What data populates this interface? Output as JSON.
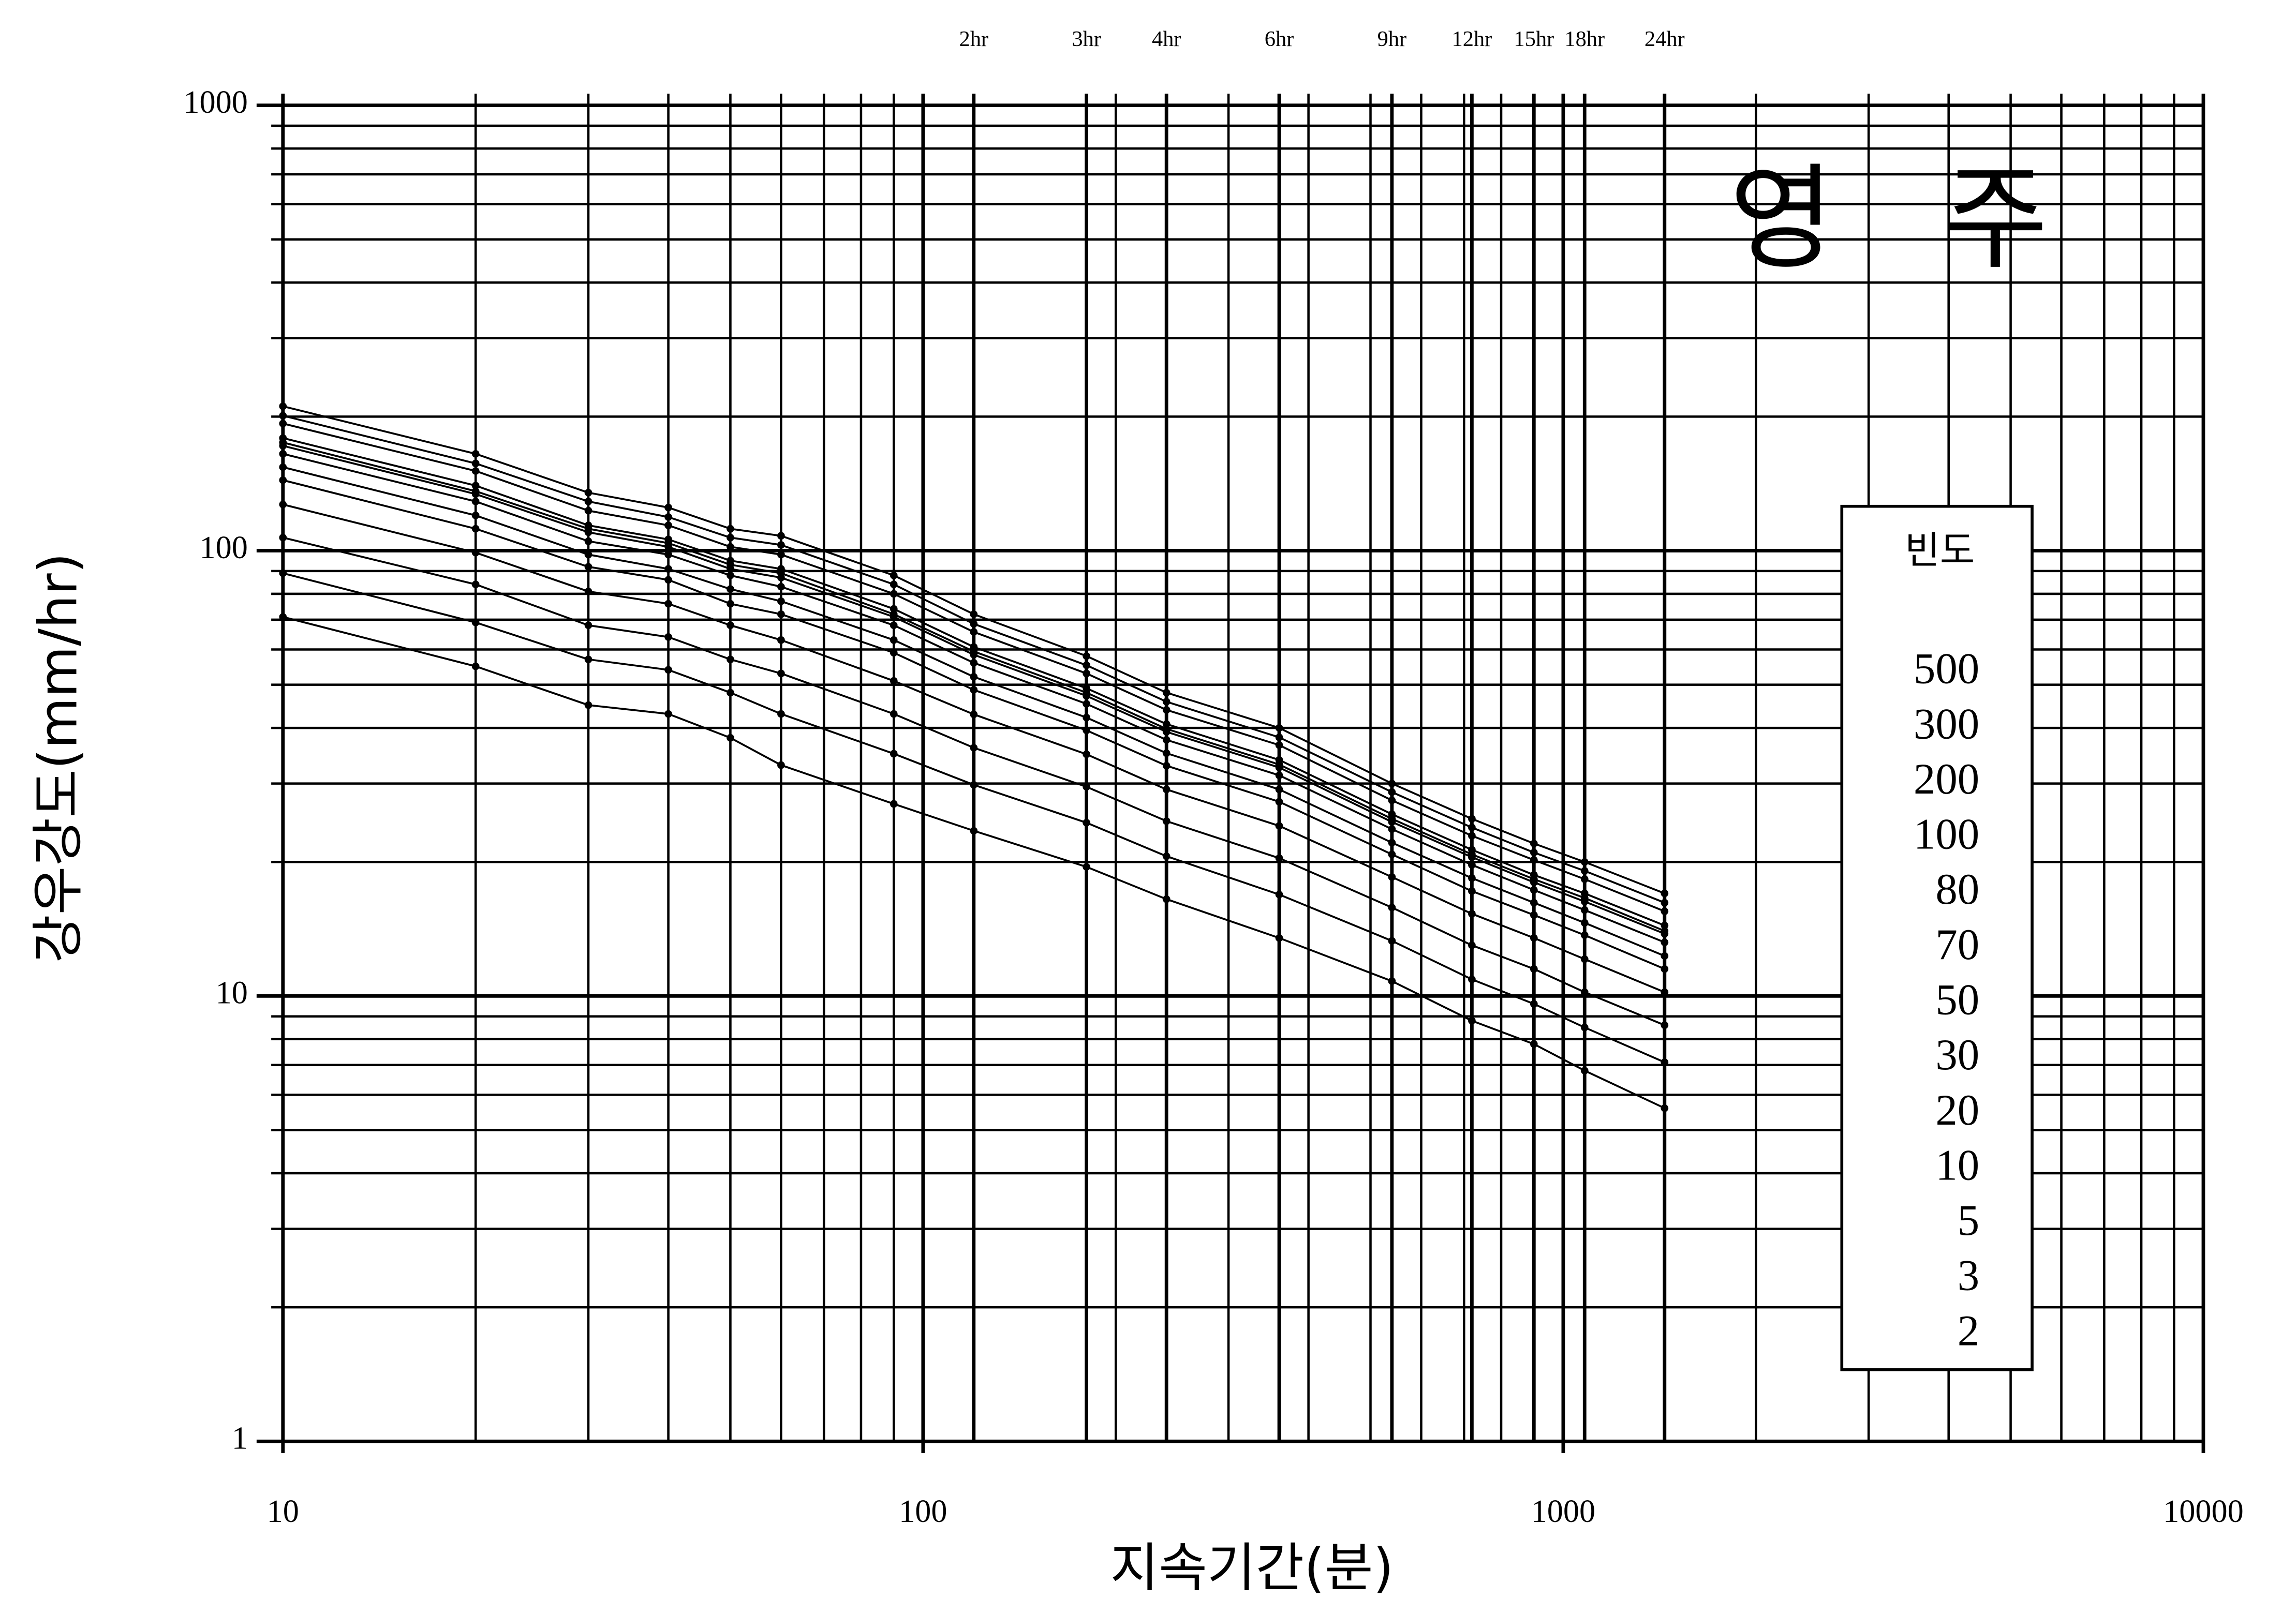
{
  "chart_data": {
    "type": "line",
    "title": "영   주",
    "xlabel": "지속기간(분)",
    "ylabel": "강우강도(mm/hr)",
    "xscale": "log",
    "yscale": "log",
    "grid": true,
    "minor_grid": true,
    "xlim": [
      10,
      10000
    ],
    "ylim": [
      1,
      1000
    ],
    "xticks": [
      10,
      100,
      1000,
      10000
    ],
    "yticks": [
      1,
      10,
      100,
      1000
    ],
    "x2ticks": [
      {
        "value": 120,
        "label": "2hr"
      },
      {
        "value": 180,
        "label": "3hr"
      },
      {
        "value": 240,
        "label": "4hr"
      },
      {
        "value": 360,
        "label": "6hr"
      },
      {
        "value": 540,
        "label": "9hr"
      },
      {
        "value": 720,
        "label": "12hr"
      },
      {
        "value": 900,
        "label": "15hr"
      },
      {
        "value": 1080,
        "label": "18hr"
      },
      {
        "value": 1440,
        "label": "24hr"
      }
    ],
    "legend_title": "빈도",
    "legend_position": "right",
    "x": [
      10,
      20,
      30,
      40,
      50,
      60,
      90,
      120,
      180,
      240,
      360,
      540,
      720,
      900,
      1080,
      1440
    ],
    "series": [
      {
        "name": "500",
        "color": "#000000",
        "values": [
          211,
          165,
          135,
          125,
          112,
          108,
          88,
          72,
          58,
          48,
          40,
          30,
          25,
          22,
          20,
          17
        ]
      },
      {
        "name": "300",
        "color": "#000000",
        "values": [
          201,
          157,
          129,
          119,
          107,
          103,
          84,
          68.5,
          55.3,
          45.8,
          38.1,
          28.7,
          23.9,
          21,
          19.1,
          16.2
        ]
      },
      {
        "name": "200",
        "color": "#000000",
        "values": [
          193,
          151,
          123,
          114,
          102,
          98,
          80,
          65.7,
          53,
          43.9,
          36.6,
          27.5,
          22.9,
          20.2,
          18.3,
          15.5
        ]
      },
      {
        "name": "100",
        "color": "#000000",
        "values": [
          179,
          140,
          114,
          106,
          95,
          91,
          74,
          60.8,
          49.1,
          40.8,
          33.9,
          25.6,
          21.3,
          18.7,
          17,
          14.4
        ]
      },
      {
        "name": "80",
        "color": "#000000",
        "values": [
          175,
          136,
          112,
          104,
          93,
          89,
          72,
          59.4,
          48,
          39.8,
          33.1,
          25,
          20.8,
          18.3,
          16.6,
          14
        ]
      },
      {
        "name": "70",
        "color": "#000000",
        "values": [
          172,
          134,
          110,
          102,
          91,
          87,
          71,
          58.4,
          47.2,
          39.2,
          32.6,
          24.6,
          20.5,
          18,
          16.3,
          13.8
        ]
      },
      {
        "name": "50",
        "color": "#000000",
        "values": [
          165,
          129,
          105,
          98,
          88,
          83,
          68,
          56,
          45.3,
          37.6,
          31.3,
          23.7,
          19.7,
          17.3,
          15.6,
          13.2
        ]
      },
      {
        "name": "30",
        "color": "#000000",
        "values": [
          154,
          120,
          98,
          91,
          82,
          77,
          63,
          52.1,
          42.2,
          35.1,
          29.1,
          22.1,
          18.4,
          16.2,
          14.6,
          12.3
        ]
      },
      {
        "name": "20",
        "color": "#000000",
        "values": [
          144,
          112,
          92,
          86,
          76,
          72,
          59,
          48.7,
          39.5,
          32.9,
          27.3,
          20.8,
          17.2,
          15.2,
          13.7,
          11.5
        ]
      },
      {
        "name": "10",
        "color": "#000000",
        "values": [
          127,
          99,
          81,
          76,
          68,
          63,
          51,
          42.9,
          34.9,
          29.1,
          24.1,
          18.5,
          15.3,
          13.5,
          12.1,
          10.2
        ]
      },
      {
        "name": "5",
        "color": "#000000",
        "values": [
          107,
          84,
          68,
          64,
          57,
          53,
          43,
          36.1,
          29.5,
          24.7,
          20.4,
          15.8,
          13,
          11.5,
          10.2,
          8.6
        ]
      },
      {
        "name": "3",
        "color": "#000000",
        "values": [
          89,
          69,
          57,
          54,
          48,
          43,
          35,
          29.8,
          24.5,
          20.6,
          16.9,
          13.3,
          10.9,
          9.6,
          8.5,
          7.1
        ]
      },
      {
        "name": "2",
        "color": "#000000",
        "values": [
          71,
          55,
          45,
          43,
          38,
          33,
          27,
          23.5,
          19.5,
          16.5,
          13.5,
          10.8,
          8.8,
          7.8,
          6.8,
          5.6
        ]
      }
    ]
  }
}
